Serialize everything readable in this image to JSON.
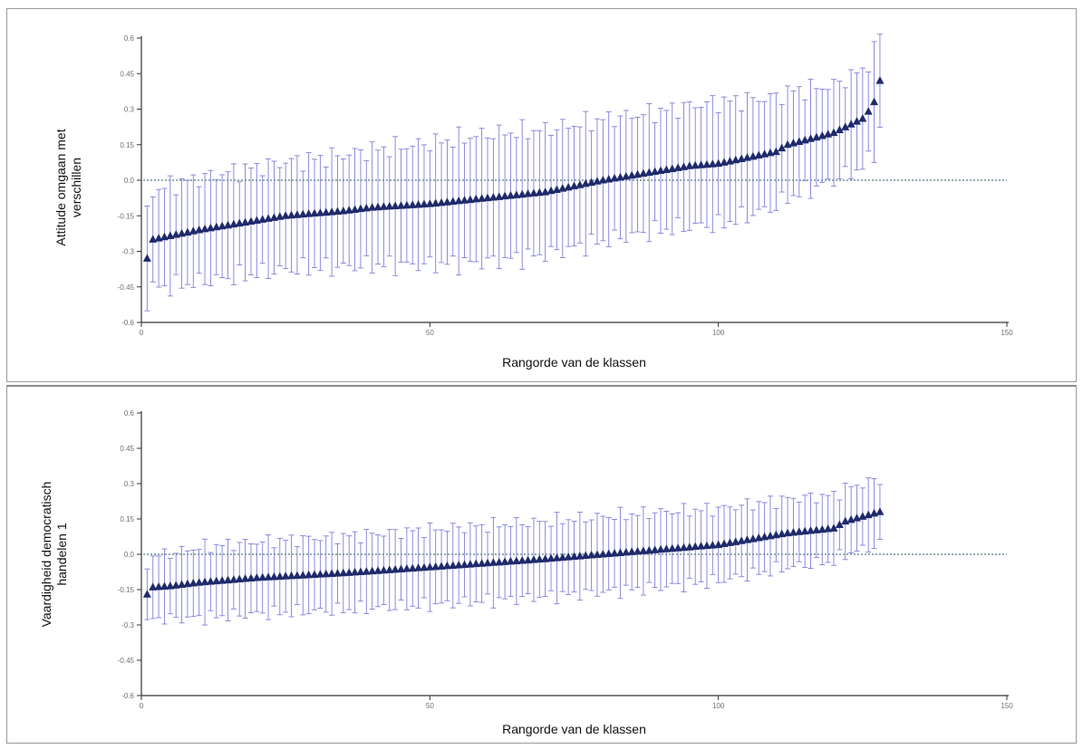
{
  "colors": {
    "marker": "#1f2a6b",
    "error_bar": "#7f7fd8",
    "axis": "#333333",
    "reference_line": "#6f8f95"
  },
  "chart_data": [
    {
      "type": "scatter",
      "title": "",
      "xlabel": "Rangorde van de klassen",
      "ylabel_lines": [
        "Attitude omgaan met",
        "verschillen"
      ],
      "xlim": [
        0,
        150
      ],
      "ylim": [
        -0.6,
        0.6
      ],
      "x_ticks": [
        0,
        50,
        100,
        150
      ],
      "y_ticks": [
        -0.6,
        -0.45,
        -0.3,
        -0.15,
        0,
        0.15,
        0.3,
        0.45,
        0.6
      ],
      "y_tick_labels": [
        "-0.6",
        "-0.45",
        "-0.3",
        "-0.15",
        "0.0",
        "0.15",
        "0.3",
        "0.45",
        "0.6"
      ],
      "reference_y": 0,
      "reference_x_end": 150,
      "grid": false,
      "marker": "triangle",
      "points": {
        "count": 128,
        "anchors_x": [
          1,
          2,
          3,
          5,
          10,
          20,
          25,
          35,
          40,
          50,
          70,
          80,
          90,
          95,
          100,
          110,
          112,
          120,
          125,
          126,
          127,
          128
        ],
        "anchors_y": [
          -0.33,
          -0.25,
          -0.245,
          -0.235,
          -0.21,
          -0.17,
          -0.15,
          -0.13,
          -0.115,
          -0.1,
          -0.05,
          0.0,
          0.04,
          0.06,
          0.07,
          0.12,
          0.15,
          0.2,
          0.26,
          0.29,
          0.33,
          0.42
        ],
        "error_anchors_x": [
          1,
          3,
          10,
          30,
          60,
          90,
          100,
          120,
          128
        ],
        "error_anchors": [
          0.19,
          0.21,
          0.22,
          0.23,
          0.27,
          0.25,
          0.26,
          0.2,
          0.21
        ],
        "error_variation": 0.05
      }
    },
    {
      "type": "scatter",
      "title": "",
      "xlabel": "Rangorde van de klassen",
      "ylabel_lines": [
        "Vaardigheid democratisch",
        "handelen 1"
      ],
      "xlim": [
        0,
        150
      ],
      "ylim": [
        -0.6,
        0.6
      ],
      "x_ticks": [
        0,
        50,
        100,
        150
      ],
      "y_ticks": [
        -0.6,
        -0.45,
        -0.3,
        -0.15,
        0,
        0.15,
        0.3,
        0.45,
        0.6
      ],
      "y_tick_labels": [
        "-0.6",
        "-0.45",
        "-0.3",
        "-0.15",
        "0.0",
        "0.15",
        "0.3",
        "0.45",
        "0.6"
      ],
      "reference_y": 0,
      "reference_x_end": 150,
      "grid": false,
      "marker": "triangle",
      "points": {
        "count": 128,
        "anchors_x": [
          1,
          2,
          5,
          10,
          20,
          35,
          50,
          70,
          90,
          100,
          112,
          120,
          122,
          125,
          128
        ],
        "anchors_y": [
          -0.17,
          -0.14,
          -0.135,
          -0.12,
          -0.1,
          -0.08,
          -0.055,
          -0.02,
          0.02,
          0.04,
          0.09,
          0.11,
          0.14,
          0.16,
          0.18
        ],
        "error_anchors_x": [
          1,
          10,
          50,
          90,
          120,
          128
        ],
        "error_anchors": [
          0.13,
          0.15,
          0.16,
          0.16,
          0.14,
          0.14
        ],
        "error_variation": 0.035
      }
    }
  ]
}
